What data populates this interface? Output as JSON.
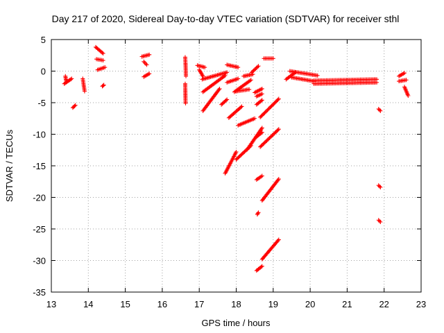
{
  "chart_data": {
    "type": "scatter",
    "title": "Day 217 of 2020, Sidereal Day-to-day VTEC variation (SDTVAR) for receiver sthl",
    "xlabel": "GPS time / hours",
    "ylabel": "SDTVAR / TECUs",
    "xlim": [
      13,
      23
    ],
    "ylim": [
      -35,
      5
    ],
    "xticks": [
      13,
      14,
      15,
      16,
      17,
      18,
      19,
      20,
      21,
      22,
      23
    ],
    "yticks": [
      5,
      0,
      -5,
      -10,
      -15,
      -20,
      -25,
      -30,
      -35
    ],
    "grid": true,
    "marker": "+",
    "color": "#ff0000",
    "series": [
      {
        "x": [
          13.35,
          13.45,
          13.55
        ],
        "y": [
          -2.0,
          -1.6,
          -1.2
        ]
      },
      {
        "x": [
          13.38,
          13.4
        ],
        "y": [
          -0.8,
          -1.5
        ]
      },
      {
        "x": [
          13.58,
          13.65
        ],
        "y": [
          -5.8,
          -5.4
        ]
      },
      {
        "x": [
          13.85,
          13.9
        ],
        "y": [
          -1.2,
          -3.2
        ]
      },
      {
        "x": [
          14.2,
          14.4
        ],
        "y": [
          3.8,
          2.8
        ]
      },
      {
        "x": [
          14.22,
          14.4
        ],
        "y": [
          1.9,
          1.7
        ]
      },
      {
        "x": [
          14.25,
          14.45
        ],
        "y": [
          0.2,
          0.6
        ]
      },
      {
        "x": [
          14.38,
          14.42
        ],
        "y": [
          -2.4,
          -2.2
        ]
      },
      {
        "x": [
          15.45,
          15.65
        ],
        "y": [
          2.3,
          2.6
        ]
      },
      {
        "x": [
          15.5,
          15.58
        ],
        "y": [
          1.5,
          1.0
        ]
      },
      {
        "x": [
          15.5,
          15.65
        ],
        "y": [
          -0.9,
          -0.4
        ]
      },
      {
        "x": [
          16.62,
          16.63,
          16.64
        ],
        "y": [
          2.2,
          1.0,
          -0.8
        ]
      },
      {
        "x": [
          16.62,
          16.63
        ],
        "y": [
          -2.0,
          -5.1
        ]
      },
      {
        "x": [
          16.95,
          17.15
        ],
        "y": [
          0.9,
          0.6
        ]
      },
      {
        "x": [
          17.0,
          17.1
        ],
        "y": [
          0.2,
          -0.8
        ]
      },
      {
        "x": [
          17.08,
          17.75
        ],
        "y": [
          -1.3,
          -0.2
        ]
      },
      {
        "x": [
          17.1,
          17.7
        ],
        "y": [
          -3.3,
          -0.7
        ]
      },
      {
        "x": [
          17.1,
          17.55
        ],
        "y": [
          -6.3,
          -2.8
        ]
      },
      {
        "x": [
          17.6,
          17.75
        ],
        "y": [
          -5.3,
          -4.5
        ]
      },
      {
        "x": [
          17.75,
          18.05
        ],
        "y": [
          1.0,
          0.6
        ]
      },
      {
        "x": [
          17.75,
          18.05
        ],
        "y": [
          -1.8,
          -1.2
        ]
      },
      {
        "x": [
          17.8,
          18.15
        ],
        "y": [
          -7.4,
          -5.6
        ]
      },
      {
        "x": [
          17.7,
          18.0
        ],
        "y": [
          -16.2,
          -12.8
        ]
      },
      {
        "x": [
          17.95,
          18.4
        ],
        "y": [
          -3.3,
          -1.4
        ]
      },
      {
        "x": [
          18.0,
          18.35
        ],
        "y": [
          -3.2,
          -2.9
        ]
      },
      {
        "x": [
          18.0,
          18.4
        ],
        "y": [
          -14.0,
          -11.8
        ]
      },
      {
        "x": [
          18.05,
          18.5
        ],
        "y": [
          -8.6,
          -7.5
        ]
      },
      {
        "x": [
          18.2,
          18.45
        ],
        "y": [
          -0.8,
          -0.5
        ]
      },
      {
        "x": [
          18.3,
          18.7
        ],
        "y": [
          -12.4,
          -9.0
        ]
      },
      {
        "x": [
          18.42,
          18.6
        ],
        "y": [
          -0.2,
          0.8
        ]
      },
      {
        "x": [
          18.5,
          18.7
        ],
        "y": [
          -3.4,
          -2.8
        ]
      },
      {
        "x": [
          18.55,
          18.7
        ],
        "y": [
          -4.0,
          -3.6
        ]
      },
      {
        "x": [
          18.57,
          18.6
        ],
        "y": [
          -22.7,
          -22.4
        ]
      },
      {
        "x": [
          18.55,
          18.7
        ],
        "y": [
          -5.3,
          -4.6
        ]
      },
      {
        "x": [
          18.55,
          18.7
        ],
        "y": [
          -10.4,
          -9.7
        ]
      },
      {
        "x": [
          18.55,
          18.7
        ],
        "y": [
          -17.2,
          -16.6
        ]
      },
      {
        "x": [
          18.55,
          18.7
        ],
        "y": [
          -31.6,
          -30.9
        ]
      },
      {
        "x": [
          18.65,
          19.15
        ],
        "y": [
          -7.3,
          -4.4
        ]
      },
      {
        "x": [
          18.65,
          19.15
        ],
        "y": [
          -12.0,
          -9.2
        ]
      },
      {
        "x": [
          18.7,
          19.15
        ],
        "y": [
          -20.5,
          -17.1
        ]
      },
      {
        "x": [
          18.7,
          19.15
        ],
        "y": [
          -29.8,
          -26.7
        ]
      },
      {
        "x": [
          18.75,
          19.0
        ],
        "y": [
          2.0,
          2.0
        ]
      },
      {
        "x": [
          19.35,
          19.6
        ],
        "y": [
          -1.3,
          -0.2
        ]
      },
      {
        "x": [
          19.45,
          20.2
        ],
        "y": [
          0.0,
          -0.7
        ]
      },
      {
        "x": [
          19.5,
          20.1
        ],
        "y": [
          -1.0,
          -1.6
        ]
      },
      {
        "x": [
          20.1,
          21.8
        ],
        "y": [
          -1.5,
          -1.3
        ]
      },
      {
        "x": [
          20.1,
          21.8
        ],
        "y": [
          -2.0,
          -1.8
        ]
      },
      {
        "x": [
          21.85,
          21.9
        ],
        "y": [
          -6.0,
          -6.3
        ]
      },
      {
        "x": [
          21.85,
          21.9
        ],
        "y": [
          -18.1,
          -18.4
        ]
      },
      {
        "x": [
          21.85,
          21.9
        ],
        "y": [
          -23.6,
          -23.9
        ]
      },
      {
        "x": [
          22.4,
          22.55
        ],
        "y": [
          -0.8,
          -0.3
        ]
      },
      {
        "x": [
          22.4,
          22.6
        ],
        "y": [
          -1.6,
          -1.4
        ]
      },
      {
        "x": [
          22.55,
          22.65
        ],
        "y": [
          -2.5,
          -3.9
        ]
      }
    ]
  }
}
